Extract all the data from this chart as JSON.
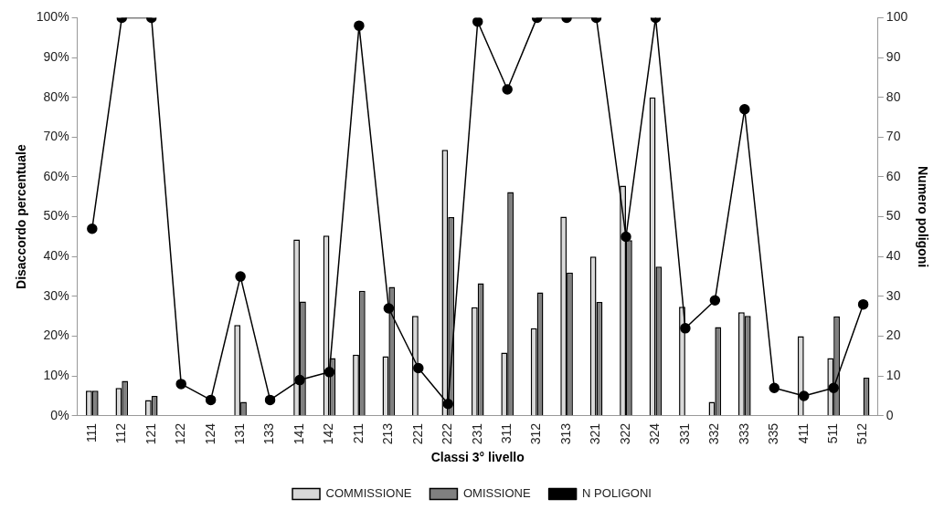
{
  "chart_data": {
    "type": "bar",
    "xlabel": "Classi 3° livello",
    "ylabel": "Disaccordo percentuale",
    "y2label": "Numero poligoni",
    "categories": [
      "111",
      "112",
      "121",
      "122",
      "124",
      "131",
      "133",
      "141",
      "142",
      "211",
      "213",
      "221",
      "222",
      "231",
      "311",
      "312",
      "313",
      "321",
      "322",
      "324",
      "331",
      "332",
      "333",
      "335",
      "411",
      "511",
      "512"
    ],
    "series": [
      {
        "name": "COMMISSIONE",
        "color": "#d9d9d9",
        "values": [
          6.3,
          7,
          4,
          0,
          0,
          22.8,
          0,
          44.3,
          45.3,
          15.4,
          15,
          25.1,
          66.8,
          27.3,
          15.9,
          22,
          50,
          40,
          57.8,
          80,
          27.4,
          3.5,
          26,
          0,
          20,
          14.5,
          0
        ]
      },
      {
        "name": "OMISSIONE",
        "color": "#808080",
        "values": [
          6.3,
          8.8,
          5,
          0,
          0,
          3.5,
          0,
          28.7,
          14.5,
          31.4,
          32.4,
          0,
          49.9,
          33.3,
          56.2,
          31,
          36,
          28.6,
          44.1,
          37.5,
          0,
          22.3,
          25.1,
          0,
          0,
          25,
          9.6
        ]
      },
      {
        "name": "N POLIGONI",
        "type": "line",
        "axis": "y2",
        "color": "#000000",
        "marker": "circle",
        "values": [
          47,
          100,
          100,
          8,
          4,
          35,
          4,
          9,
          11,
          98,
          27,
          12,
          3,
          99,
          82,
          100,
          100,
          100,
          45,
          100,
          22,
          29,
          77,
          7,
          5,
          7,
          28
        ]
      }
    ],
    "ylim": [
      0,
      100
    ],
    "yticks": [
      {
        "value": 0,
        "label": "0%"
      },
      {
        "value": 10,
        "label": "10%"
      },
      {
        "value": 20,
        "label": "20%"
      },
      {
        "value": 30,
        "label": "30%"
      },
      {
        "value": 40,
        "label": "40%"
      },
      {
        "value": 50,
        "label": "50%"
      },
      {
        "value": 60,
        "label": "60%"
      },
      {
        "value": 70,
        "label": "70%"
      },
      {
        "value": 80,
        "label": "80%"
      },
      {
        "value": 90,
        "label": "90%"
      },
      {
        "value": 100,
        "label": "100%"
      }
    ],
    "y2lim": [
      0,
      100
    ],
    "y2ticks": [
      0,
      10,
      20,
      30,
      40,
      50,
      60,
      70,
      80,
      90,
      100
    ],
    "grid": false,
    "legend": "bottom"
  }
}
